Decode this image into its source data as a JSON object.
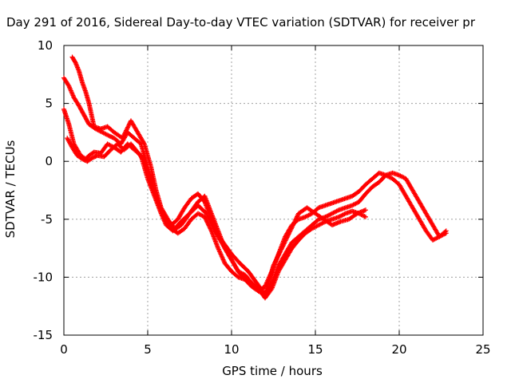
{
  "chart_data": {
    "type": "scatter",
    "title": "Day 291 of 2016, Sidereal Day-to-day VTEC variation (SDTVAR) for receiver pr",
    "xlabel": "GPS time / hours",
    "ylabel": "SDTVAR / TECUs",
    "xlim": [
      0,
      25
    ],
    "ylim": [
      -15,
      10
    ],
    "xticks": [
      0,
      5,
      10,
      15,
      20,
      25
    ],
    "yticks": [
      -15,
      -10,
      -5,
      0,
      5,
      10
    ],
    "xtick_labels": [
      "0",
      "5",
      "10",
      "15",
      "20",
      "25"
    ],
    "ytick_labels": [
      "-15",
      "-10",
      "-5",
      "0",
      "5",
      "10"
    ],
    "grid": true,
    "marker": "+",
    "color": "#ff0000",
    "series": [
      {
        "x": [
          0.0,
          0.3,
          0.6,
          1.0,
          1.3,
          1.5,
          1.8,
          2.2,
          2.6,
          3.0,
          3.4,
          3.8,
          4.2,
          4.6,
          5.0,
          5.4,
          5.8,
          6.1,
          6.5,
          7.0,
          7.5,
          8.0,
          8.4,
          8.8,
          9.2,
          9.6,
          10.0,
          10.4,
          10.8,
          11.2,
          11.6,
          12.0,
          12.4,
          12.8,
          13.2,
          13.6,
          14.0,
          14.4,
          14.8,
          15.2,
          15.6,
          16.0,
          16.4,
          16.8,
          17.2,
          17.6,
          18.0,
          18.4,
          18.8,
          19.2,
          19.6,
          20.0,
          20.4,
          20.8,
          21.2,
          21.6,
          22.0,
          22.4,
          22.8
        ],
        "y": [
          4.5,
          3.2,
          1.5,
          0.5,
          0.2,
          0.5,
          0.8,
          0.7,
          1.5,
          1.2,
          0.8,
          1.5,
          1.0,
          0.5,
          -1.5,
          -3.0,
          -4.5,
          -5.5,
          -6.0,
          -5.5,
          -4.5,
          -3.5,
          -3.0,
          -4.5,
          -6.0,
          -7.5,
          -8.5,
          -9.5,
          -9.8,
          -10.5,
          -11.2,
          -11.5,
          -10.5,
          -9.0,
          -8.0,
          -7.0,
          -6.5,
          -6.0,
          -5.5,
          -5.0,
          -4.8,
          -4.5,
          -4.2,
          -4.0,
          -3.8,
          -3.5,
          -2.8,
          -2.2,
          -1.8,
          -1.2,
          -1.0,
          -1.2,
          -1.5,
          -2.5,
          -3.5,
          -4.5,
          -5.5,
          -6.5,
          -6.2
        ]
      },
      {
        "x": [
          0.0,
          0.3,
          0.6,
          0.9,
          1.2,
          1.5,
          1.9,
          2.3,
          2.7,
          3.0,
          3.4,
          3.8,
          4.2,
          4.6,
          5.0,
          5.3,
          5.6,
          6.0,
          6.4,
          6.8,
          7.2,
          7.6,
          8.0,
          8.4,
          8.8,
          9.2,
          9.6,
          10.0,
          10.4,
          10.8,
          11.2,
          11.6,
          12.0,
          12.4,
          12.8,
          13.2,
          13.6,
          14.0,
          14.4,
          14.8,
          15.2,
          15.6,
          16.0,
          16.4,
          16.8,
          17.2,
          17.6,
          18.0,
          18.4,
          18.8,
          19.2,
          19.6,
          20.0,
          20.4,
          20.8,
          21.2,
          21.6,
          22.0,
          22.4,
          22.8
        ],
        "y": [
          7.2,
          6.5,
          5.5,
          4.8,
          4.0,
          3.2,
          2.8,
          2.5,
          2.2,
          2.0,
          1.5,
          2.5,
          2.0,
          1.5,
          -0.5,
          -2.0,
          -3.5,
          -4.8,
          -5.5,
          -5.0,
          -4.0,
          -3.2,
          -2.8,
          -3.5,
          -5.0,
          -6.5,
          -7.5,
          -8.5,
          -9.5,
          -10.2,
          -10.8,
          -11.2,
          -10.8,
          -9.5,
          -8.0,
          -6.5,
          -5.5,
          -5.0,
          -4.8,
          -4.5,
          -4.0,
          -3.8,
          -3.6,
          -3.4,
          -3.2,
          -3.0,
          -2.6,
          -2.0,
          -1.5,
          -1.0,
          -1.2,
          -1.5,
          -2.0,
          -3.0,
          -4.0,
          -5.0,
          -6.0,
          -6.8,
          -6.5,
          -6.0
        ]
      },
      {
        "x": [
          0.5,
          0.7,
          0.9,
          1.1,
          1.3,
          1.5,
          1.8,
          2.2,
          2.6,
          3.0,
          3.5,
          4.0,
          4.4,
          4.8,
          5.2,
          5.5,
          5.8,
          6.2,
          6.6,
          7.0,
          7.5,
          8.0,
          8.5,
          9.0,
          9.5,
          10.0,
          10.5,
          11.0,
          11.5,
          12.0,
          12.5,
          13.0,
          13.5,
          14.0,
          14.5,
          15.0,
          15.5,
          16.0,
          16.5,
          17.0,
          17.5,
          18.0
        ],
        "y": [
          9.0,
          8.5,
          7.8,
          6.8,
          6.0,
          5.0,
          3.0,
          2.8,
          3.0,
          2.5,
          2.0,
          3.5,
          2.5,
          1.5,
          -0.5,
          -2.5,
          -4.0,
          -5.0,
          -5.8,
          -5.2,
          -4.5,
          -3.8,
          -4.5,
          -6.0,
          -7.0,
          -8.0,
          -8.8,
          -9.5,
          -10.5,
          -11.5,
          -9.0,
          -7.5,
          -6.0,
          -4.5,
          -4.0,
          -4.5,
          -5.0,
          -5.5,
          -5.2,
          -5.0,
          -4.5,
          -4.2
        ]
      },
      {
        "x": [
          0.2,
          0.5,
          0.8,
          1.1,
          1.4,
          1.7,
          2.0,
          2.4,
          2.8,
          3.2,
          3.6,
          4.0,
          4.4,
          4.8,
          5.2,
          5.6,
          6.0,
          6.4,
          6.8,
          7.2,
          7.6,
          8.0,
          8.4,
          8.8,
          9.2,
          9.6,
          10.0,
          10.4,
          10.8,
          11.2,
          11.6,
          12.0,
          12.4,
          12.8,
          13.2,
          13.6,
          14.0,
          14.4,
          14.8,
          15.2,
          15.6,
          16.0,
          16.4,
          16.8,
          17.2,
          17.6,
          18.0
        ],
        "y": [
          2.0,
          1.2,
          0.5,
          0.2,
          0.0,
          0.3,
          0.5,
          0.4,
          1.0,
          1.5,
          1.0,
          1.5,
          0.8,
          0.0,
          -2.0,
          -3.5,
          -5.0,
          -5.8,
          -6.2,
          -5.8,
          -5.0,
          -4.5,
          -4.8,
          -6.0,
          -7.5,
          -8.8,
          -9.5,
          -10.0,
          -10.2,
          -10.5,
          -11.0,
          -11.8,
          -11.0,
          -9.5,
          -8.5,
          -7.5,
          -6.8,
          -6.2,
          -5.8,
          -5.5,
          -5.2,
          -5.0,
          -4.8,
          -4.5,
          -4.3,
          -4.5,
          -4.8
        ]
      }
    ]
  }
}
